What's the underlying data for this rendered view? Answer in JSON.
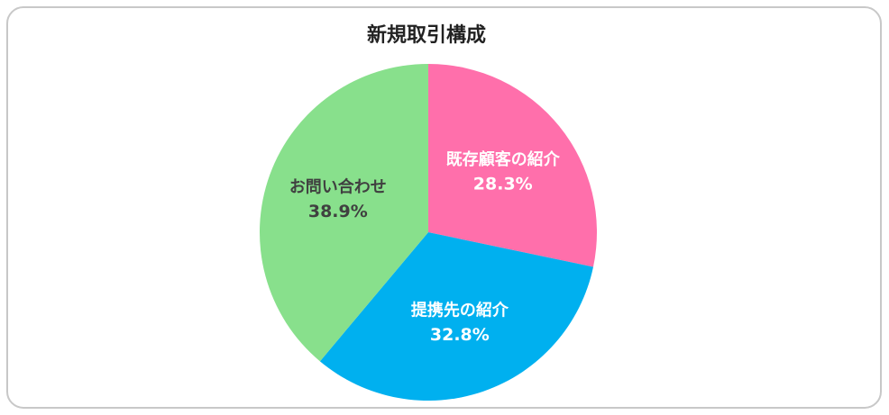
{
  "chart_data": {
    "type": "pie",
    "title": "新規取引構成",
    "categories": [
      "既存顧客の紹介",
      "提携先の紹介",
      "お問い合わせ"
    ],
    "values": [
      28.3,
      32.8,
      38.9
    ],
    "value_labels": [
      "28.3%",
      "32.8%",
      "38.9%"
    ],
    "colors": [
      "#ff6fab",
      "#00b0ef",
      "#88e08c"
    ],
    "label_colors": [
      "#ffffff",
      "#ffffff",
      "#404040"
    ]
  }
}
